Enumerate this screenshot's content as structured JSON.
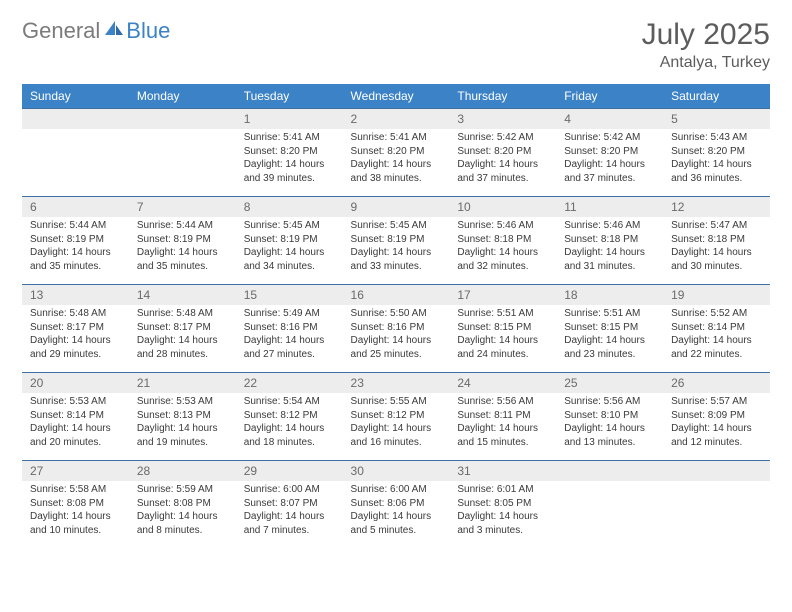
{
  "brand": {
    "word1": "General",
    "word2": "Blue"
  },
  "title": "July 2025",
  "location": "Antalya, Turkey",
  "colors": {
    "header_bg": "#3c82c6",
    "header_text": "#ffffff",
    "daynum_bg": "#ededed",
    "daynum_text": "#6a6a6a",
    "body_text": "#3a3a3a",
    "border": "#3c6ea0",
    "title_text": "#5c5c5c",
    "logo_gray": "#7b7b7b",
    "logo_blue": "#3c82c6"
  },
  "fonts": {
    "title_size_pt": 22,
    "location_size_pt": 12,
    "header_size_pt": 9,
    "daynum_size_pt": 9,
    "body_size_pt": 7.5
  },
  "day_headers": [
    "Sunday",
    "Monday",
    "Tuesday",
    "Wednesday",
    "Thursday",
    "Friday",
    "Saturday"
  ],
  "weeks": [
    [
      null,
      null,
      {
        "n": "1",
        "sr": "5:41 AM",
        "ss": "8:20 PM",
        "dl": "14 hours and 39 minutes."
      },
      {
        "n": "2",
        "sr": "5:41 AM",
        "ss": "8:20 PM",
        "dl": "14 hours and 38 minutes."
      },
      {
        "n": "3",
        "sr": "5:42 AM",
        "ss": "8:20 PM",
        "dl": "14 hours and 37 minutes."
      },
      {
        "n": "4",
        "sr": "5:42 AM",
        "ss": "8:20 PM",
        "dl": "14 hours and 37 minutes."
      },
      {
        "n": "5",
        "sr": "5:43 AM",
        "ss": "8:20 PM",
        "dl": "14 hours and 36 minutes."
      }
    ],
    [
      {
        "n": "6",
        "sr": "5:44 AM",
        "ss": "8:19 PM",
        "dl": "14 hours and 35 minutes."
      },
      {
        "n": "7",
        "sr": "5:44 AM",
        "ss": "8:19 PM",
        "dl": "14 hours and 35 minutes."
      },
      {
        "n": "8",
        "sr": "5:45 AM",
        "ss": "8:19 PM",
        "dl": "14 hours and 34 minutes."
      },
      {
        "n": "9",
        "sr": "5:45 AM",
        "ss": "8:19 PM",
        "dl": "14 hours and 33 minutes."
      },
      {
        "n": "10",
        "sr": "5:46 AM",
        "ss": "8:18 PM",
        "dl": "14 hours and 32 minutes."
      },
      {
        "n": "11",
        "sr": "5:46 AM",
        "ss": "8:18 PM",
        "dl": "14 hours and 31 minutes."
      },
      {
        "n": "12",
        "sr": "5:47 AM",
        "ss": "8:18 PM",
        "dl": "14 hours and 30 minutes."
      }
    ],
    [
      {
        "n": "13",
        "sr": "5:48 AM",
        "ss": "8:17 PM",
        "dl": "14 hours and 29 minutes."
      },
      {
        "n": "14",
        "sr": "5:48 AM",
        "ss": "8:17 PM",
        "dl": "14 hours and 28 minutes."
      },
      {
        "n": "15",
        "sr": "5:49 AM",
        "ss": "8:16 PM",
        "dl": "14 hours and 27 minutes."
      },
      {
        "n": "16",
        "sr": "5:50 AM",
        "ss": "8:16 PM",
        "dl": "14 hours and 25 minutes."
      },
      {
        "n": "17",
        "sr": "5:51 AM",
        "ss": "8:15 PM",
        "dl": "14 hours and 24 minutes."
      },
      {
        "n": "18",
        "sr": "5:51 AM",
        "ss": "8:15 PM",
        "dl": "14 hours and 23 minutes."
      },
      {
        "n": "19",
        "sr": "5:52 AM",
        "ss": "8:14 PM",
        "dl": "14 hours and 22 minutes."
      }
    ],
    [
      {
        "n": "20",
        "sr": "5:53 AM",
        "ss": "8:14 PM",
        "dl": "14 hours and 20 minutes."
      },
      {
        "n": "21",
        "sr": "5:53 AM",
        "ss": "8:13 PM",
        "dl": "14 hours and 19 minutes."
      },
      {
        "n": "22",
        "sr": "5:54 AM",
        "ss": "8:12 PM",
        "dl": "14 hours and 18 minutes."
      },
      {
        "n": "23",
        "sr": "5:55 AM",
        "ss": "8:12 PM",
        "dl": "14 hours and 16 minutes."
      },
      {
        "n": "24",
        "sr": "5:56 AM",
        "ss": "8:11 PM",
        "dl": "14 hours and 15 minutes."
      },
      {
        "n": "25",
        "sr": "5:56 AM",
        "ss": "8:10 PM",
        "dl": "14 hours and 13 minutes."
      },
      {
        "n": "26",
        "sr": "5:57 AM",
        "ss": "8:09 PM",
        "dl": "14 hours and 12 minutes."
      }
    ],
    [
      {
        "n": "27",
        "sr": "5:58 AM",
        "ss": "8:08 PM",
        "dl": "14 hours and 10 minutes."
      },
      {
        "n": "28",
        "sr": "5:59 AM",
        "ss": "8:08 PM",
        "dl": "14 hours and 8 minutes."
      },
      {
        "n": "29",
        "sr": "6:00 AM",
        "ss": "8:07 PM",
        "dl": "14 hours and 7 minutes."
      },
      {
        "n": "30",
        "sr": "6:00 AM",
        "ss": "8:06 PM",
        "dl": "14 hours and 5 minutes."
      },
      {
        "n": "31",
        "sr": "6:01 AM",
        "ss": "8:05 PM",
        "dl": "14 hours and 3 minutes."
      },
      null,
      null
    ]
  ],
  "labels": {
    "sunrise": "Sunrise:",
    "sunset": "Sunset:",
    "daylight": "Daylight:"
  }
}
